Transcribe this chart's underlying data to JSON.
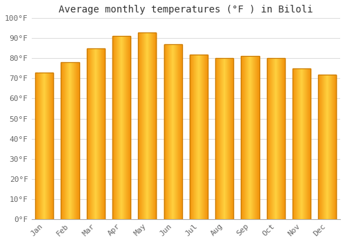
{
  "title": "Average monthly temperatures (°F ) in Biloli",
  "months": [
    "Jan",
    "Feb",
    "Mar",
    "Apr",
    "May",
    "Jun",
    "Jul",
    "Aug",
    "Sep",
    "Oct",
    "Nov",
    "Dec"
  ],
  "values": [
    73,
    78,
    85,
    91,
    93,
    87,
    82,
    80,
    81,
    80,
    75,
    72
  ],
  "bar_color_center": "#FFD966",
  "bar_color_edge": "#E8920A",
  "bar_edge_color": "#C87800",
  "background_color": "#FFFFFF",
  "grid_color": "#DDDDDD",
  "ylim": [
    0,
    100
  ],
  "yticks": [
    0,
    10,
    20,
    30,
    40,
    50,
    60,
    70,
    80,
    90,
    100
  ],
  "ytick_labels": [
    "0°F",
    "10°F",
    "20°F",
    "30°F",
    "40°F",
    "50°F",
    "60°F",
    "70°F",
    "80°F",
    "90°F",
    "100°F"
  ],
  "title_fontsize": 10,
  "tick_fontsize": 8,
  "bar_width": 0.7
}
